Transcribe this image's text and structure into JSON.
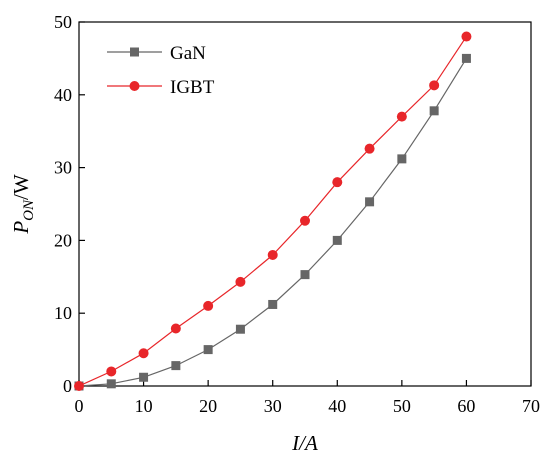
{
  "chart_data": {
    "type": "line",
    "xlabel": "I/A",
    "ylabel_main": "P",
    "ylabel_sub": "ON",
    "ylabel_unit": "/W",
    "xlim": [
      0,
      70
    ],
    "ylim": [
      0,
      50
    ],
    "xticks": [
      0,
      10,
      20,
      30,
      40,
      50,
      60,
      70
    ],
    "yticks": [
      0,
      10,
      20,
      30,
      40,
      50
    ],
    "grid": false,
    "legend_position": "top-left",
    "x": [
      0,
      5,
      10,
      15,
      20,
      25,
      30,
      35,
      40,
      45,
      50,
      55,
      60
    ],
    "series": [
      {
        "name": "GaN",
        "color": "#666666",
        "marker": "square",
        "values": [
          0,
          0.3,
          1.2,
          2.8,
          5.0,
          7.8,
          11.2,
          15.3,
          20.0,
          25.3,
          31.2,
          37.8,
          45.0
        ]
      },
      {
        "name": "IGBT",
        "color": "#e8262a",
        "marker": "circle",
        "values": [
          0,
          2.0,
          4.5,
          7.9,
          11.0,
          14.3,
          18.0,
          22.7,
          28.0,
          32.6,
          37.0,
          41.3,
          48.0
        ]
      }
    ]
  }
}
